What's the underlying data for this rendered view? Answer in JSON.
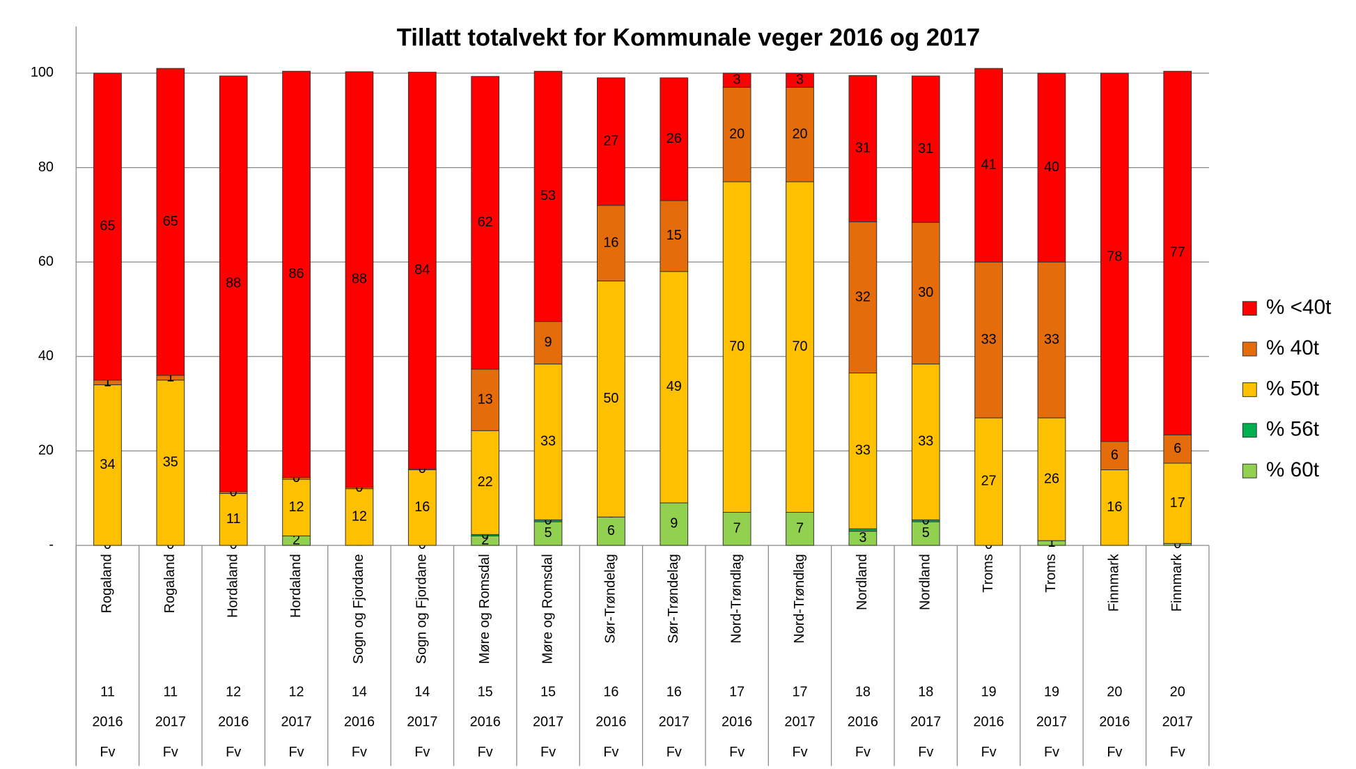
{
  "chart_data": {
    "type": "stacked_bar",
    "title": "Tillatt totalvekt for Kommunale veger 2016 og 2017",
    "categories": [
      "Rogaland",
      "Rogaland",
      "Hordaland",
      "Hordaland",
      "Sogn og Fjordane",
      "Sogn og Fjordane",
      "Møre og Romsdal",
      "Møre og Romsdal",
      "Sør-Trøndelag",
      "Sør-Trøndelag",
      "Nord-Trøndlag",
      "Nord-Trøndlag",
      "Nordland",
      "Nordland",
      "Troms",
      "Troms",
      "Finnmark",
      "Finnmark"
    ],
    "codes": [
      "11",
      "11",
      "12",
      "12",
      "14",
      "14",
      "15",
      "15",
      "16",
      "16",
      "17",
      "17",
      "18",
      "18",
      "19",
      "19",
      "20",
      "20"
    ],
    "years": [
      "2016",
      "2017",
      "2016",
      "2017",
      "2016",
      "2017",
      "2016",
      "2017",
      "2016",
      "2017",
      "2016",
      "2017",
      "2016",
      "2017",
      "2016",
      "2017",
      "2016",
      "2017"
    ],
    "road": [
      "Fv",
      "Fv",
      "Fv",
      "Fv",
      "Fv",
      "Fv",
      "Fv",
      "Fv",
      "Fv",
      "Fv",
      "Fv",
      "Fv",
      "Fv",
      "Fv",
      "Fv",
      "Fv",
      "Fv",
      "Fv"
    ],
    "series": [
      {
        "name": "% 60t",
        "color": "#92d050",
        "values": [
          0,
          0,
          0,
          2,
          0,
          0,
          2,
          5,
          6,
          9,
          7,
          7,
          3,
          5,
          0,
          1,
          0,
          0.4
        ],
        "value_labels": [
          "0",
          "0",
          "0",
          "2",
          "-",
          "0",
          "2",
          "5",
          "6",
          "9",
          "7",
          "7",
          "3",
          "5",
          "0",
          "1",
          "-",
          "0"
        ]
      },
      {
        "name": "% 56t",
        "color": "#00b050",
        "values": [
          0,
          0,
          0,
          0,
          0,
          0,
          0.3,
          0.4,
          0,
          0,
          0,
          0,
          0.5,
          0.4,
          0,
          0,
          0,
          0
        ],
        "value_labels": [
          null,
          null,
          null,
          null,
          null,
          null,
          "0",
          "0",
          "-",
          "-",
          "-",
          "-",
          null,
          "0",
          null,
          null,
          null,
          null
        ]
      },
      {
        "name": "% 50t",
        "color": "#ffc000",
        "values": [
          34,
          35,
          11,
          12,
          12,
          16,
          22,
          33,
          50,
          49,
          70,
          70,
          33,
          33,
          27,
          26,
          16,
          17
        ]
      },
      {
        "name": "% 40t",
        "color": "#e46c0a",
        "values": [
          1,
          1,
          0.4,
          0.4,
          0.3,
          0.2,
          13,
          9,
          16,
          15,
          20,
          20,
          32,
          30,
          33,
          33,
          6,
          6
        ],
        "value_labels": [
          "1",
          "1",
          "0",
          "0",
          "0",
          "0",
          "13",
          "9",
          "16",
          "15",
          "20",
          "20",
          "32",
          "30",
          "33",
          "33",
          "6",
          "6"
        ]
      },
      {
        "name": "% <40t",
        "color": "#ff0000",
        "values": [
          65,
          65,
          88,
          86,
          88,
          84,
          62,
          53,
          27,
          26,
          3,
          3,
          31,
          31,
          41,
          40,
          78,
          77
        ]
      }
    ],
    "ylim": [
      0,
      100
    ],
    "yticks": [
      {
        "value": 0,
        "label": "-"
      },
      20,
      40,
      60,
      80,
      100
    ],
    "grid": true,
    "legend": "right"
  }
}
